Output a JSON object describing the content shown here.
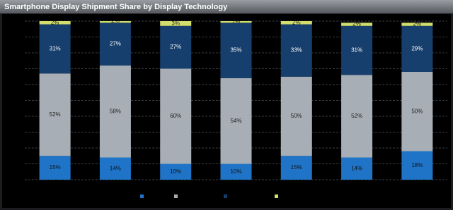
{
  "chart_data": {
    "type": "stacked-bar",
    "title": "Smartphone Display Shipment Share by Display Technology",
    "categories": [
      null,
      null,
      null,
      null,
      null,
      null,
      null
    ],
    "series": [
      {
        "color": "#1f74c8",
        "values": [
          15,
          14,
          10,
          10,
          15,
          14,
          18
        ],
        "value_labels": [
          "15%",
          "14%",
          "10%",
          "10%",
          "15%",
          "14%",
          "18%"
        ]
      },
      {
        "color": "#a7aeb5",
        "values": [
          52,
          58,
          60,
          54,
          50,
          52,
          50
        ],
        "value_labels": [
          "52%",
          "58%",
          "60%",
          "54%",
          "50%",
          "52%",
          "50%"
        ]
      },
      {
        "color": "#173f6d",
        "values": [
          31,
          27,
          27,
          35,
          33,
          31,
          29
        ],
        "value_labels": [
          "31%",
          "27%",
          "27%",
          "35%",
          "33%",
          "31%",
          "29%"
        ]
      },
      {
        "color": "#d3df6c",
        "values": [
          2,
          2,
          3,
          1,
          2,
          2,
          2
        ],
        "value_labels": [
          "2%",
          "2%",
          "3%",
          "1%",
          "2%",
          "2%",
          "2%"
        ]
      }
    ],
    "ylim": [
      0,
      100
    ],
    "yticks": [
      0,
      10,
      20,
      30,
      40,
      50,
      60,
      70,
      80,
      90,
      100
    ],
    "grid": true
  }
}
